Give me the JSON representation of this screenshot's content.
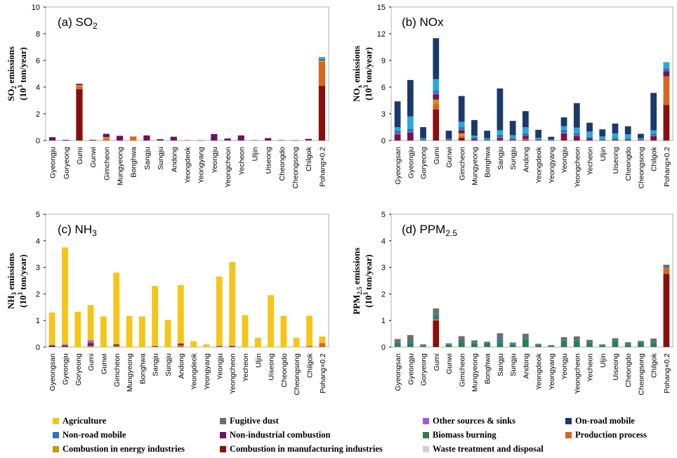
{
  "categories_all": [
    "Gyeongsan",
    "Gyeongju",
    "Goryeong",
    "Gumi",
    "Gunwi",
    "Gimcheon",
    "Mungyeong",
    "Bonghwa",
    "Sangju",
    "Sungju",
    "Andong",
    "Yeongdeok",
    "Yeongyang",
    "Yeongju",
    "Yeongcheon",
    "Yecheon",
    "Uljin",
    "Uiseong",
    "Cheongdo",
    "Cheongsong",
    "Chilgok",
    "Pohang×0.2"
  ],
  "categories_so2": [
    "Gyeongju",
    "Goryeong",
    "Gumi",
    "Gunwi",
    "Gimcheon",
    "Mungyeong",
    "Bonghwa",
    "Sangju",
    "Sungju",
    "Andong",
    "Yeongdeok",
    "Yeongyang",
    "Yeongju",
    "Yeongcheon",
    "Yecheon",
    "Uljin",
    "Uiseong",
    "Cheongdo",
    "Cheongsong",
    "Chilgok",
    "Pohang×0.2"
  ],
  "sector_order": [
    "Combustion in manufacturing industries",
    "Production process",
    "Combustion in energy industries",
    "Non-industrial combustion",
    "Other sources & sinks",
    "Fugitive dust",
    "Biomass burning",
    "Agriculture",
    "Waste treatment and disposal",
    "Non-road mobile",
    "On-road mobile"
  ],
  "colors": {
    "Agriculture": "#f5c518",
    "Fugitive dust": "#6e6e6e",
    "Other sources & sinks": "#a05ad0",
    "On-road mobile": "#1b3a6b",
    "Non-road mobile": "#2e74b5",
    "Non-industrial combustion": "#70125e",
    "Biomass burning": "#2e7d4f",
    "Production process": "#d9661f",
    "Combustion in energy industries": "#c59a10",
    "Combustion in manufacturing industries": "#8b0d0d",
    "Waste treatment and disposal": "#d0d0d0",
    "cyan": "#29a8dc"
  },
  "legend": [
    {
      "label": "Agriculture",
      "color": "#f5c518"
    },
    {
      "label": "Fugitive dust",
      "color": "#6e6e6e"
    },
    {
      "label": "Other sources & sinks",
      "color": "#a05ad0"
    },
    {
      "label": "On-road mobile",
      "color": "#1b3a6b"
    },
    {
      "label": "Non-road mobile",
      "color": "#2e74b5"
    },
    {
      "label": "Non-industrial combustion",
      "color": "#70125e"
    },
    {
      "label": "Biomass burning",
      "color": "#2e7d4f"
    },
    {
      "label": "Production process",
      "color": "#d9661f"
    },
    {
      "label": "Combustion in energy industries",
      "color": "#c59a10"
    },
    {
      "label": "Combustion in manufacturing industries",
      "color": "#8b0d0d"
    },
    {
      "label": "Waste treatment and disposal",
      "color": "#d0d0d0"
    }
  ],
  "chart_data": [
    {
      "type": "bar",
      "stacked": true,
      "id": "so2",
      "panel_label_main": "(a) SO",
      "panel_label_sub": "2",
      "ylabel_main": "SO",
      "ylabel_sub": "2",
      "ylabel_rest": " emissions",
      "ylabel_line2": "(10",
      "ylabel_sup": "3",
      "ylabel_line2_rest": " ton/year)",
      "ylim": [
        0,
        10
      ],
      "yticks": [
        "0",
        "2",
        "4",
        "6",
        "8",
        "10"
      ],
      "categories_key": "categories_so2",
      "series": [
        {
          "name": "Combustion in manufacturing industries",
          "values": [
            0,
            0,
            3.85,
            0,
            0,
            0,
            0,
            0,
            0,
            0,
            0,
            0,
            0,
            0,
            0,
            0,
            0,
            0,
            0,
            0,
            4.1
          ]
        },
        {
          "name": "Production process",
          "values": [
            0,
            0,
            0.2,
            0,
            0.15,
            0,
            0.3,
            0,
            0,
            0,
            0,
            0,
            0,
            0,
            0,
            0,
            0,
            0,
            0,
            0,
            1.8
          ]
        },
        {
          "name": "Combustion in energy industries",
          "values": [
            0,
            0,
            0.1,
            0,
            0.1,
            0,
            0,
            0,
            0,
            0,
            0,
            0,
            0,
            0,
            0,
            0,
            0,
            0,
            0,
            0,
            0.1
          ]
        },
        {
          "name": "Non-industrial combustion",
          "values": [
            0.25,
            0.05,
            0.1,
            0.05,
            0.25,
            0.35,
            0,
            0.38,
            0.1,
            0.28,
            0.02,
            0.02,
            0.48,
            0.15,
            0.38,
            0.02,
            0.18,
            0.03,
            0.02,
            0.12,
            0.05
          ]
        },
        {
          "name": "cyan",
          "values": [
            0,
            0,
            0,
            0,
            0,
            0,
            0,
            0,
            0,
            0,
            0,
            0,
            0,
            0,
            0,
            0,
            0,
            0,
            0,
            0,
            0.2
          ]
        }
      ]
    },
    {
      "type": "bar",
      "stacked": true,
      "id": "nox",
      "panel_label_main": "(b) NOx",
      "panel_label_sub": "",
      "ylabel_main": "NO",
      "ylabel_sub": "x",
      "ylabel_rest": " emissions",
      "ylabel_line2": "(10",
      "ylabel_sup": "3",
      "ylabel_line2_rest": " ton/year)",
      "ylim": [
        0,
        15
      ],
      "yticks": [
        "0",
        "3",
        "6",
        "9",
        "12",
        "15"
      ],
      "categories_key": "categories_all",
      "series": [
        {
          "name": "Combustion in manufacturing industries",
          "values": [
            0.2,
            0.2,
            0,
            3.5,
            0,
            0.3,
            0,
            0,
            0.1,
            0,
            0.1,
            0,
            0,
            0.3,
            0.2,
            0,
            0,
            0,
            0,
            0,
            0.2,
            4.0
          ]
        },
        {
          "name": "Production process",
          "values": [
            0,
            0,
            0,
            0.6,
            0,
            0.2,
            0,
            0,
            0,
            0,
            0.1,
            0,
            0,
            0,
            0,
            0,
            0,
            0,
            0,
            0,
            0,
            3.2
          ]
        },
        {
          "name": "Combustion in energy industries",
          "values": [
            0,
            0,
            0,
            0.5,
            0,
            0.3,
            0,
            0,
            0,
            0,
            0,
            0,
            0,
            0,
            0,
            0,
            0,
            0,
            0,
            0,
            0,
            0
          ]
        },
        {
          "name": "Non-industrial combustion",
          "values": [
            0.5,
            0.7,
            0.05,
            0.6,
            0.05,
            0.35,
            0.15,
            0.05,
            0.2,
            0.1,
            0.3,
            0.05,
            0.02,
            0.5,
            0.3,
            0.2,
            0.05,
            0.1,
            0.1,
            0.05,
            0.3,
            0.6
          ]
        },
        {
          "name": "Other sources & sinks",
          "values": [
            0.1,
            0.1,
            0,
            0.1,
            0,
            0.05,
            0,
            0,
            0.05,
            0,
            0,
            0,
            0,
            0.1,
            0.05,
            0,
            0,
            0,
            0,
            0,
            0.05,
            0
          ]
        },
        {
          "name": "Non-road mobile",
          "values": [
            0.3,
            0.3,
            0.1,
            0.3,
            0.1,
            0.3,
            0.2,
            0.1,
            0.3,
            0.2,
            0.3,
            0.1,
            0.05,
            0.3,
            0.3,
            0.2,
            0.1,
            0.2,
            0.1,
            0.1,
            0.2,
            0.3
          ]
        },
        {
          "name": "cyan",
          "values": [
            0.4,
            1.4,
            0.1,
            1.3,
            0.05,
            0.6,
            0.2,
            0.1,
            0.5,
            0.3,
            0.7,
            0.15,
            0.05,
            0.4,
            0.6,
            0.6,
            0.3,
            0.5,
            0.5,
            0.1,
            0.4,
            0.7
          ]
        },
        {
          "name": "On-road mobile",
          "values": [
            2.9,
            4.1,
            1.25,
            4.6,
            0.9,
            2.9,
            1.75,
            0.85,
            4.7,
            1.6,
            1.8,
            0.9,
            0.3,
            1.0,
            2.75,
            1.0,
            0.8,
            1.1,
            0.9,
            0.5,
            4.2,
            0.0
          ]
        }
      ]
    },
    {
      "type": "bar",
      "stacked": true,
      "id": "nh3",
      "panel_label_main": "(c) NH",
      "panel_label_sub": "3",
      "ylabel_main": "NH",
      "ylabel_sub": "3",
      "ylabel_rest": " emissions",
      "ylabel_line2": "(10",
      "ylabel_sup": "3",
      "ylabel_line2_rest": " ton/year)",
      "ylim": [
        0,
        5
      ],
      "yticks": [
        "0",
        "1",
        "2",
        "3",
        "4",
        "5"
      ],
      "categories_key": "categories_all",
      "series": [
        {
          "name": "Production process",
          "values": [
            0,
            0,
            0,
            0.05,
            0,
            0.05,
            0,
            0,
            0,
            0,
            0.08,
            0,
            0,
            0,
            0,
            0,
            0,
            0,
            0,
            0,
            0,
            0.15
          ]
        },
        {
          "name": "Non-industrial combustion",
          "values": [
            0.05,
            0.05,
            0,
            0.1,
            0,
            0.05,
            0,
            0,
            0.02,
            0,
            0.05,
            0,
            0,
            0.02,
            0.03,
            0,
            0,
            0,
            0,
            0,
            0.02,
            0
          ]
        },
        {
          "name": "Other sources & sinks",
          "values": [
            0.03,
            0.05,
            0,
            0.1,
            0,
            0,
            0,
            0,
            0.02,
            0,
            0,
            0,
            0,
            0.02,
            0.02,
            0,
            0,
            0,
            0,
            0,
            0,
            0
          ]
        },
        {
          "name": "Agriculture",
          "values": [
            1.22,
            3.65,
            1.33,
            1.33,
            1.15,
            2.7,
            1.17,
            1.15,
            2.26,
            1.02,
            2.2,
            0.22,
            0.1,
            2.61,
            3.15,
            1.2,
            0.35,
            1.95,
            1.18,
            0.35,
            1.16,
            0.25
          ]
        }
      ]
    },
    {
      "type": "bar",
      "stacked": true,
      "id": "ppm25",
      "panel_label_main": "(d) PPM",
      "panel_label_sub": "2.5",
      "ylabel_main": "PPM",
      "ylabel_sub": "2.5",
      "ylabel_rest": " emissions",
      "ylabel_line2": "(10",
      "ylabel_sup": "3",
      "ylabel_line2_rest": " ton/year)",
      "ylim": [
        0,
        5
      ],
      "yticks": [
        "0",
        "1",
        "2",
        "3",
        "4",
        "5"
      ],
      "categories_key": "categories_all",
      "series": [
        {
          "name": "Combustion in manufacturing industries",
          "values": [
            0,
            0,
            0,
            1.0,
            0,
            0,
            0,
            0,
            0,
            0,
            0,
            0,
            0,
            0,
            0,
            0,
            0,
            0,
            0,
            0,
            0,
            2.75
          ]
        },
        {
          "name": "Production process",
          "values": [
            0,
            0,
            0,
            0.05,
            0,
            0,
            0,
            0,
            0,
            0,
            0,
            0,
            0,
            0,
            0,
            0,
            0,
            0,
            0,
            0,
            0,
            0.25
          ]
        },
        {
          "name": "Biomass burning",
          "values": [
            0.12,
            0.15,
            0.03,
            0.12,
            0.08,
            0.2,
            0.15,
            0.15,
            0.18,
            0.08,
            0.28,
            0.06,
            0.04,
            0.22,
            0.22,
            0.12,
            0.05,
            0.2,
            0.1,
            0.18,
            0.12,
            0
          ]
        },
        {
          "name": "Non-road mobile",
          "values": [
            0.05,
            0.1,
            0.02,
            0.08,
            0.02,
            0.08,
            0.03,
            0.02,
            0.1,
            0.03,
            0.06,
            0.02,
            0.01,
            0.05,
            0.06,
            0.05,
            0.02,
            0.05,
            0.03,
            0.02,
            0.05,
            0.08
          ]
        },
        {
          "name": "Fugitive dust",
          "values": [
            0.13,
            0.2,
            0.05,
            0.2,
            0.04,
            0.13,
            0.07,
            0.03,
            0.24,
            0.06,
            0.16,
            0.04,
            0.02,
            0.1,
            0.12,
            0.1,
            0.03,
            0.08,
            0.05,
            0.03,
            0.15,
            0.02
          ]
        }
      ]
    }
  ]
}
